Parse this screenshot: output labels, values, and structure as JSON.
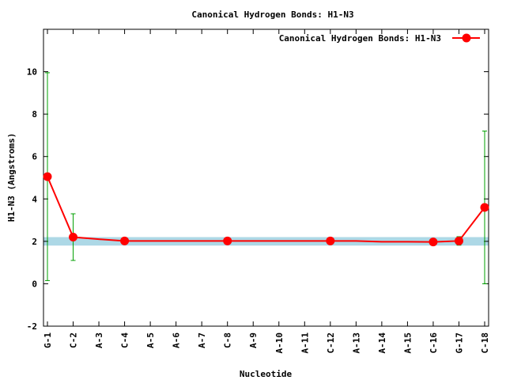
{
  "chart_data": {
    "type": "line",
    "title": "Canonical Hydrogen Bonds: H1-N3",
    "x_label": "Nucleotide",
    "y_label": "H1-N3 (Angstroms)",
    "categories": [
      "G-1",
      "C-2",
      "A-3",
      "C-4",
      "A-5",
      "A-6",
      "A-7",
      "C-8",
      "A-9",
      "A-10",
      "A-11",
      "C-12",
      "A-13",
      "A-14",
      "A-15",
      "C-16",
      "G-17",
      "C-18"
    ],
    "series": [
      {
        "name": "Canonical Hydrogen Bonds: H1-N3",
        "color": "#ff0000",
        "values": [
          5.05,
          2.2,
          2.1,
          2.02,
          2.02,
          2.02,
          2.02,
          2.02,
          2.02,
          2.02,
          2.02,
          2.02,
          2.02,
          1.98,
          1.98,
          1.97,
          2.02,
          3.6
        ],
        "errors": [
          4.9,
          1.1,
          null,
          0.05,
          null,
          null,
          null,
          0.05,
          null,
          null,
          null,
          0.05,
          null,
          null,
          null,
          0.05,
          0.2,
          3.6
        ],
        "error_color": "#00a000"
      }
    ],
    "band": [
      1.8,
      2.2
    ],
    "band_color": "#add8e6",
    "ylim": [
      -2,
      12
    ],
    "yticks": [
      -2,
      0,
      2,
      4,
      6,
      8,
      10
    ],
    "legend": "top-right"
  }
}
